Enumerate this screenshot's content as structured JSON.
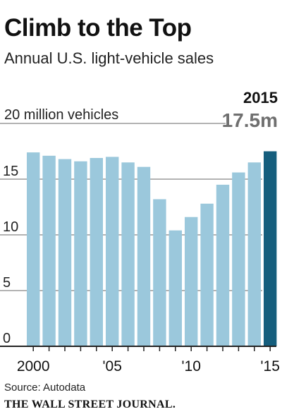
{
  "title": "Climb to the Top",
  "subtitle": "Annual U.S. light-vehicle sales",
  "source": "Source: Autodata",
  "masthead": "THE WALL STREET JOURNAL.",
  "chart_data": {
    "type": "bar",
    "title": "Climb to the Top",
    "subtitle": "Annual U.S. light-vehicle sales",
    "unit_label": "20 million vehicles",
    "categories": [
      "2000",
      "2001",
      "2002",
      "2003",
      "2004",
      "2005",
      "2006",
      "2007",
      "2008",
      "2009",
      "2010",
      "2011",
      "2012",
      "2013",
      "2014",
      "2015"
    ],
    "values": [
      17.4,
      17.1,
      16.8,
      16.6,
      16.9,
      17.0,
      16.5,
      16.1,
      13.2,
      10.4,
      11.6,
      12.8,
      14.5,
      15.6,
      16.5,
      17.5
    ],
    "x_tick_labels": [
      {
        "category": "2000",
        "label": "2000"
      },
      {
        "category": "2005",
        "label": "'05"
      },
      {
        "category": "2010",
        "label": "'10"
      },
      {
        "category": "2015",
        "label": "'15"
      }
    ],
    "y_ticks": [
      0,
      5,
      10,
      15,
      20
    ],
    "y_tick_labels": [
      "0",
      "5",
      "10",
      "15"
    ],
    "ylim": [
      0,
      20
    ],
    "highlight": {
      "category": "2015",
      "year_label": "2015",
      "value_label": "17.5m"
    },
    "colors": {
      "bar": "#9bc8dc",
      "highlight": "#155e7d",
      "highlight_value_text": "#6f6f6f",
      "grid": "#9a9a9a",
      "axis": "#222222"
    }
  }
}
